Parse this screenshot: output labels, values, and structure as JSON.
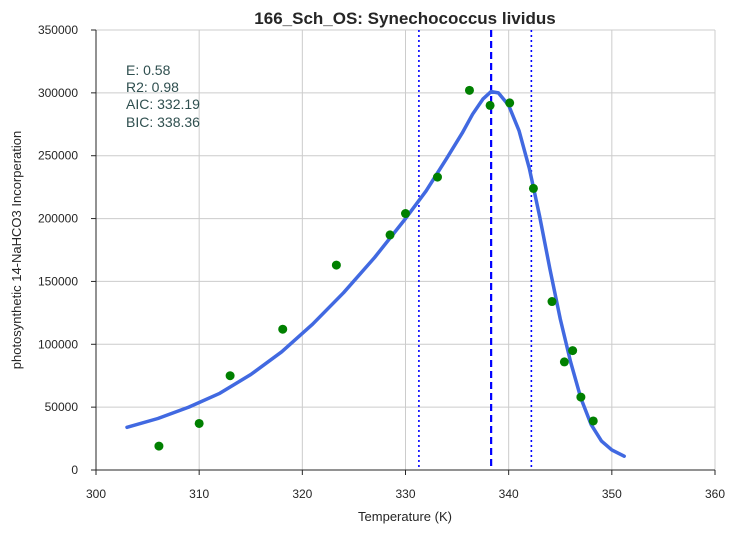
{
  "chart_data": {
    "type": "scatter",
    "title": "166_Sch_OS: Synechococcus lividus",
    "xlabel": "Temperature (K)",
    "ylabel": "photosynthetic 14-NaHCO3 Incorperation",
    "xlim": [
      300,
      360
    ],
    "ylim": [
      0,
      350000
    ],
    "x_ticks": [
      "300",
      "310",
      "320",
      "330",
      "340",
      "350",
      "360"
    ],
    "y_ticks": [
      "0",
      "50000",
      "100000",
      "150000",
      "200000",
      "250000",
      "300000",
      "350000"
    ],
    "x_tick_values": [
      300,
      310,
      320,
      330,
      340,
      350,
      360
    ],
    "y_tick_values": [
      0,
      50000,
      100000,
      150000,
      200000,
      250000,
      300000,
      350000
    ],
    "grid": true,
    "observed": {
      "color": "#008000",
      "x": [
        306.1,
        310.0,
        313.0,
        318.1,
        323.3,
        328.5,
        330.0,
        333.1,
        336.2,
        338.2,
        340.1,
        342.4,
        344.2,
        345.4,
        346.2,
        347.0,
        348.2
      ],
      "y": [
        19000,
        37000,
        75000,
        112000,
        163000,
        187000,
        204000,
        233000,
        302000,
        290000,
        292000,
        224000,
        134000,
        86000,
        95000,
        58000,
        39000
      ]
    },
    "fit": {
      "color": "#4169e1",
      "x": [
        303.0,
        306.0,
        309.0,
        312.0,
        315.0,
        318.0,
        321.0,
        324.0,
        327.0,
        330.0,
        332.0,
        334.0,
        335.5,
        336.5,
        337.5,
        338.3,
        339.0,
        340.0,
        341.0,
        342.0,
        343.0,
        344.0,
        345.0,
        346.0,
        347.0,
        348.0,
        349.0,
        350.0,
        351.2
      ],
      "y": [
        34000,
        41000,
        50000,
        61000,
        76000,
        94000,
        116000,
        141000,
        169000,
        200000,
        222000,
        248000,
        268000,
        283000,
        295000,
        301000,
        300000,
        290000,
        270000,
        240000,
        202000,
        160000,
        120000,
        86000,
        57000,
        36000,
        23000,
        16000,
        11000
      ]
    },
    "vertical_lines": [
      {
        "x": 338.3,
        "style": "dashed",
        "color": "#0000ff"
      },
      {
        "x": 331.3,
        "style": "dotted",
        "color": "#0000ff"
      },
      {
        "x": 342.2,
        "style": "dotted",
        "color": "#0000ff"
      }
    ],
    "annotations": [
      "E:  0.58",
      "R2:  0.98",
      "AIC: 332.19",
      "BIC: 338.36"
    ]
  }
}
